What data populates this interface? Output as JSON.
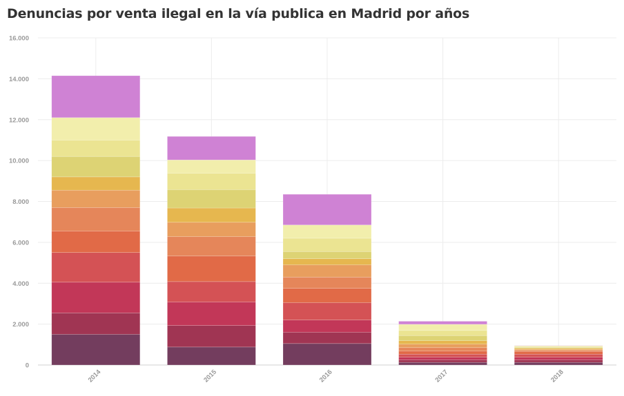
{
  "chart_data": {
    "type": "bar",
    "stacked": true,
    "title": "Denuncias por venta ilegal en la vía publica en Madrid por años",
    "xlabel": "",
    "ylabel": "",
    "ylim": [
      0,
      16000
    ],
    "yticks": [
      0,
      2000,
      4000,
      6000,
      8000,
      10000,
      12000,
      14000,
      16000
    ],
    "ytick_labels": [
      "0",
      "2.000",
      "4.000",
      "6.000",
      "8.000",
      "10.000",
      "12.000",
      "14.000",
      "16.000"
    ],
    "categories": [
      "2014",
      "2015",
      "2016",
      "2017",
      "2018"
    ],
    "legend": "none",
    "grid": true,
    "series": [
      {
        "color": "#733d5e",
        "values": [
          1500,
          880,
          1050,
          130,
          130
        ]
      },
      {
        "color": "#a03553",
        "values": [
          1050,
          1050,
          550,
          120,
          120
        ]
      },
      {
        "color": "#c23758",
        "values": [
          1500,
          1150,
          600,
          130,
          130
        ]
      },
      {
        "color": "#d45255",
        "values": [
          1450,
          1000,
          850,
          150,
          150
        ]
      },
      {
        "color": "#e16a47",
        "values": [
          1050,
          1250,
          700,
          150,
          130
        ]
      },
      {
        "color": "#e5865a",
        "values": [
          1150,
          950,
          550,
          170,
          60
        ]
      },
      {
        "color": "#e89e5e",
        "values": [
          850,
          700,
          600,
          170,
          50
        ]
      },
      {
        "color": "#e6b74f",
        "values": [
          650,
          700,
          300,
          170,
          50
        ]
      },
      {
        "color": "#ddd374",
        "values": [
          1000,
          900,
          350,
          250,
          40
        ]
      },
      {
        "color": "#ebe492",
        "values": [
          800,
          800,
          650,
          250,
          40
        ]
      },
      {
        "color": "#f2eeac",
        "values": [
          1100,
          650,
          650,
          300,
          40
        ]
      },
      {
        "color": "#cf82d4",
        "values": [
          2050,
          1150,
          1500,
          150,
          10
        ]
      }
    ]
  }
}
